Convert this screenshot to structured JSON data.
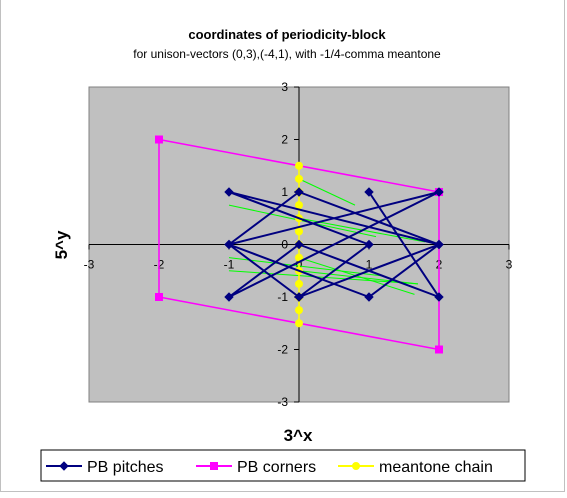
{
  "chart_data": {
    "type": "line",
    "title": "coordinates of periodicity-block",
    "subtitle": "for unison-vectors (0,3),(-4,1), with -1/4-comma meantone",
    "xlabel": "3^x",
    "ylabel": "5^y",
    "xlim": [
      -3,
      3
    ],
    "ylim": [
      -3,
      3
    ],
    "xticks": [
      "-3",
      "-2",
      "-1",
      "0",
      "1",
      "2",
      "3"
    ],
    "yticks": [
      "-3",
      "-2",
      "-1",
      "0",
      "1",
      "2",
      "3"
    ],
    "plot_background": "#c0c0c0",
    "grid": false,
    "legend_position": "bottom",
    "series": [
      {
        "name": "PB pitches",
        "color": "#000080",
        "marker": "diamond",
        "points": [
          [
            1,
            1
          ],
          [
            2,
            -1
          ],
          [
            0,
            0
          ],
          [
            -1,
            -1
          ],
          [
            2,
            1
          ],
          [
            -1,
            0
          ],
          [
            1,
            -1
          ],
          [
            2,
            0
          ],
          [
            -1,
            1
          ],
          [
            1,
            0
          ],
          [
            0,
            -1
          ],
          [
            2,
            0
          ],
          [
            0,
            1
          ],
          [
            -1,
            0
          ],
          [
            0,
            -1
          ]
        ]
      },
      {
        "name": "PB corners",
        "color": "#ff00ff",
        "marker": "square",
        "points": [
          [
            -2,
            2
          ],
          [
            2,
            1
          ],
          [
            2,
            -2
          ],
          [
            -2,
            -1
          ],
          [
            -2,
            2
          ]
        ]
      },
      {
        "name": "meantone chain",
        "color": "#ffff00",
        "marker": "circle",
        "points": [
          [
            0,
            -1.5
          ],
          [
            0,
            -1.25
          ],
          [
            0,
            -1
          ],
          [
            0,
            -0.75
          ],
          [
            0,
            -0.5
          ],
          [
            0,
            -0.25
          ],
          [
            0,
            0
          ],
          [
            0,
            0.25
          ],
          [
            0,
            0.5
          ],
          [
            0,
            0.75
          ],
          [
            0,
            1
          ],
          [
            0,
            1.25
          ],
          [
            0,
            1.5
          ]
        ]
      },
      {
        "color": "#00ff00",
        "marker": "none",
        "segments": [
          [
            [
              0,
              1.25
            ],
            [
              0.8,
              0.75
            ]
          ],
          [
            [
              0,
              0.5
            ],
            [
              1.8,
              0.05
            ]
          ],
          [
            [
              -1,
              0.75
            ],
            [
              1.1,
              0.15
            ]
          ],
          [
            [
              -1,
              -0.25
            ],
            [
              1.2,
              -0.6
            ]
          ],
          [
            [
              -1,
              -0.5
            ],
            [
              1.7,
              -0.75
            ]
          ],
          [
            [
              0,
              -0.5
            ],
            [
              1.7,
              -0.75
            ]
          ],
          [
            [
              0,
              -0.25
            ],
            [
              1.65,
              -0.95
            ]
          ]
        ]
      }
    ]
  }
}
